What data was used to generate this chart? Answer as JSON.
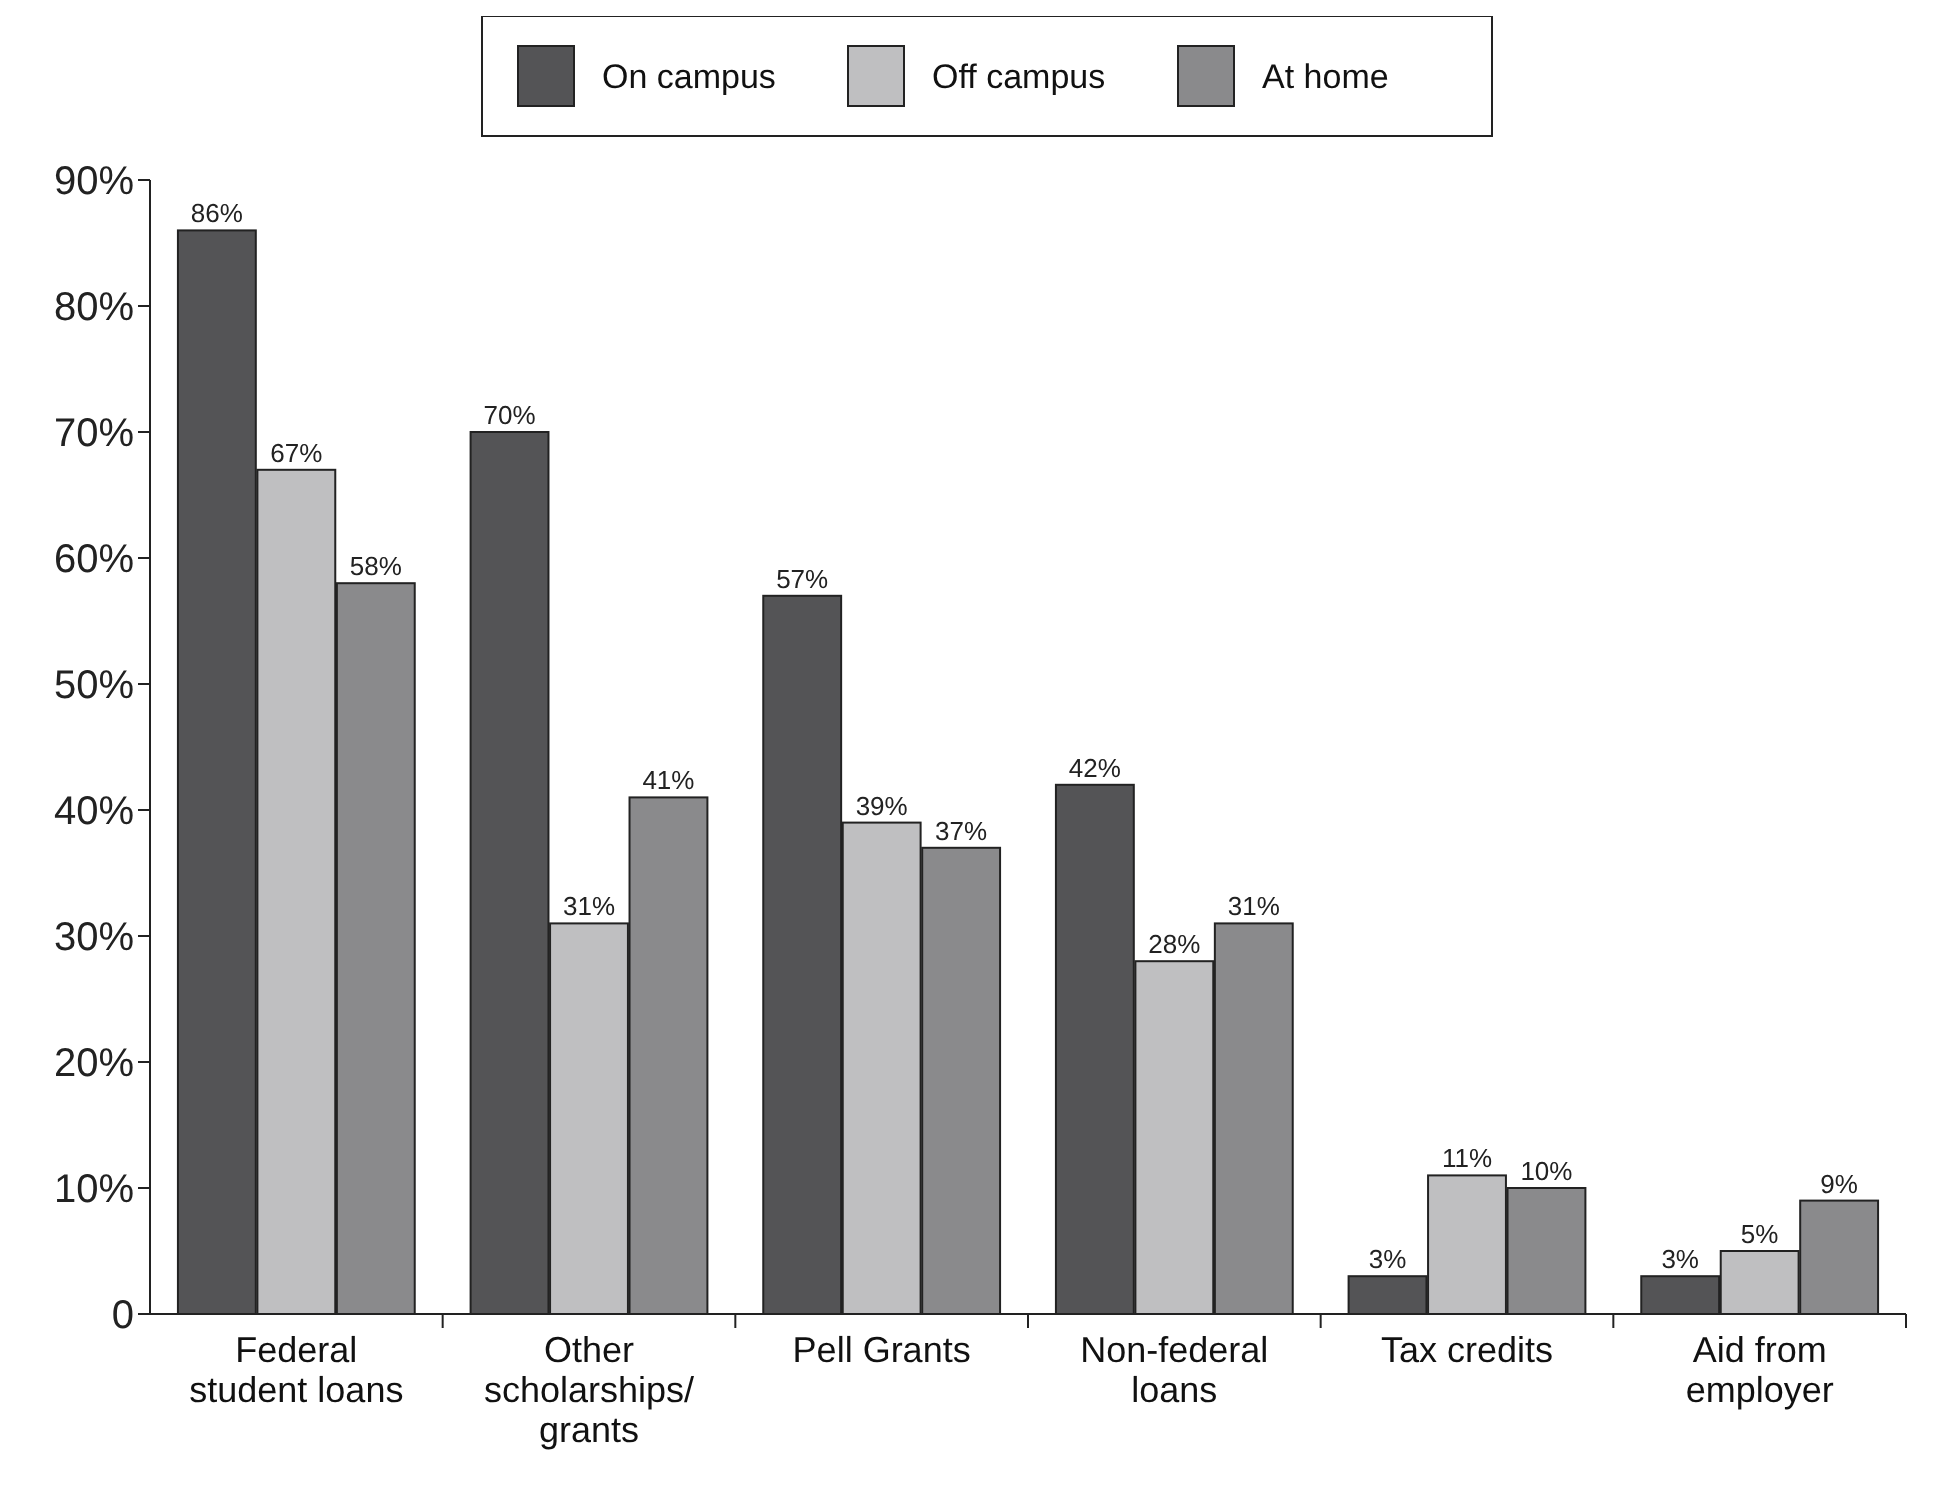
{
  "chart_data": {
    "type": "bar",
    "categories": [
      "Federal\nstudent loans",
      "Other\nscholarships/\ngrants",
      "Pell Grants",
      "Non-federal\nloans",
      "Tax credits",
      "Aid from\nemployer"
    ],
    "series": [
      {
        "name": "On campus",
        "color": "#545456",
        "values": [
          86,
          70,
          57,
          42,
          3,
          3
        ],
        "value_labels": [
          "86%",
          "70%",
          "57%",
          "42%",
          "3%",
          "3%"
        ]
      },
      {
        "name": "Off campus",
        "color": "#bfbfc1",
        "values": [
          67,
          31,
          39,
          28,
          11,
          5
        ],
        "value_labels": [
          "67%",
          "31%",
          "39%",
          "28%",
          "11%",
          "5%"
        ]
      },
      {
        "name": "At home",
        "color": "#8a8a8c",
        "values": [
          58,
          41,
          37,
          31,
          10,
          9
        ],
        "value_labels": [
          "58%",
          "41%",
          "37%",
          "31%",
          "10%",
          "9%"
        ]
      }
    ],
    "ylim": [
      0,
      90
    ],
    "yticks": [
      0,
      {
        "value": 10,
        "label": "10%"
      },
      {
        "value": 20,
        "label": "20%"
      },
      {
        "value": 30,
        "label": "30%"
      },
      {
        "value": 40,
        "label": "40%"
      },
      {
        "value": 50,
        "label": "50%"
      },
      {
        "value": 60,
        "label": "60%"
      },
      {
        "value": 70,
        "label": "70%"
      },
      {
        "value": 80,
        "label": "80%"
      },
      {
        "value": 90,
        "label": "90%"
      }
    ],
    "grid": false,
    "legend": "top"
  }
}
